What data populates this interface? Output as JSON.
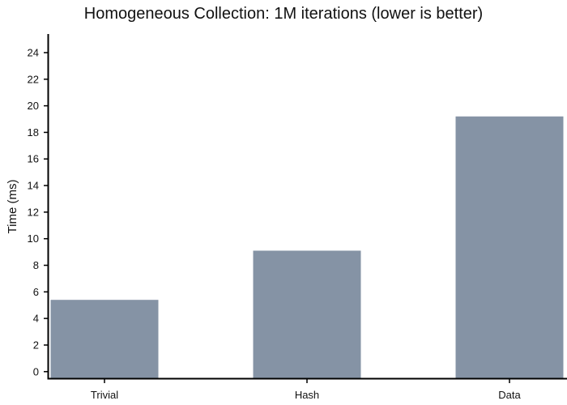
{
  "chart_data": {
    "type": "bar",
    "title": "Homogeneous Collection: 1M iterations (lower is better)",
    "xlabel": "",
    "ylabel": "Time (ms)",
    "categories": [
      "Trivial",
      "Hash",
      "Data"
    ],
    "values": [
      5.4,
      9.1,
      19.2
    ],
    "ylim": [
      -0.5,
      25.4
    ],
    "yticks": [
      0,
      2,
      4,
      6,
      8,
      10,
      12,
      14,
      16,
      18,
      20,
      22,
      24
    ],
    "grid": false,
    "legend": "none",
    "bar_color": "#8593a5",
    "axis_color": "#000000"
  }
}
